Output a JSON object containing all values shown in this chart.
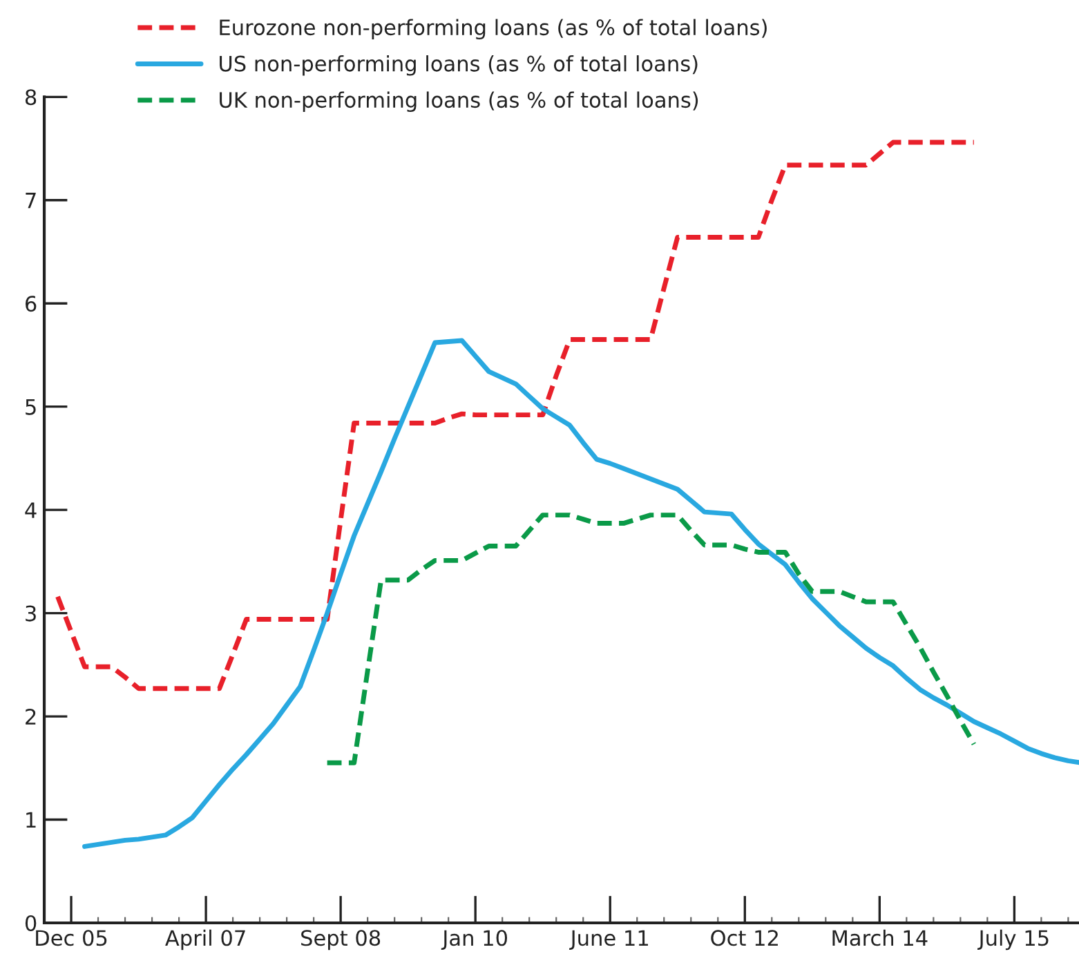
{
  "chart_data": {
    "type": "line",
    "categories": [
      null,
      "Dec 05",
      null,
      null,
      null,
      null,
      null,
      null,
      null,
      null,
      null,
      "April 07",
      null,
      null,
      null,
      null,
      null,
      null,
      null,
      null,
      null,
      "Sept 08",
      null,
      null,
      null,
      null,
      null,
      null,
      null,
      null,
      null,
      "Jan 10",
      null,
      null,
      null,
      null,
      null,
      null,
      null,
      null,
      null,
      "June 11",
      null,
      null,
      null,
      null,
      null,
      null,
      null,
      null,
      null,
      "Oct 12",
      null,
      null,
      null,
      null,
      null,
      null,
      null,
      null,
      null,
      "March 14",
      null,
      null,
      null,
      null,
      null,
      null,
      null,
      null,
      null,
      "July 15",
      null,
      null,
      null,
      null,
      null
    ],
    "ylim": [
      0,
      8
    ],
    "yticks": [
      0,
      1,
      2,
      3,
      4,
      5,
      6,
      7,
      8
    ],
    "grid": false,
    "legend": "top left",
    "series": [
      {
        "name": "Eurozone non-performing loans (as % of total loans)",
        "color": "#e8202a",
        "line_style": "dashed",
        "values": [
          3.16,
          2.82,
          2.48,
          2.48,
          2.48,
          2.38,
          2.27,
          2.27,
          2.27,
          2.27,
          2.27,
          2.27,
          2.27,
          2.6,
          2.94,
          2.94,
          2.94,
          2.94,
          2.94,
          2.94,
          2.94,
          3.9,
          4.84,
          4.84,
          4.84,
          4.84,
          4.84,
          4.84,
          4.84,
          4.89,
          4.93,
          4.92,
          4.92,
          4.92,
          4.92,
          4.92,
          4.92,
          5.3,
          5.65,
          5.65,
          5.65,
          5.65,
          5.65,
          5.65,
          5.65,
          6.15,
          6.64,
          6.64,
          6.64,
          6.64,
          6.64,
          6.64,
          6.64,
          7.0,
          7.34,
          7.34,
          7.34,
          7.34,
          7.34,
          7.34,
          7.34,
          7.45,
          7.56,
          7.56,
          7.56,
          7.56,
          7.56,
          7.56,
          7.56,
          null,
          null,
          null,
          null,
          null,
          null,
          null,
          null
        ]
      },
      {
        "name": "US non-performing loans (as % of total loans)",
        "color": "#29a8e0",
        "line_style": "solid",
        "values": [
          null,
          null,
          0.74,
          0.76,
          0.78,
          0.8,
          0.81,
          0.83,
          0.85,
          0.93,
          1.02,
          1.18,
          1.34,
          1.49,
          1.63,
          1.78,
          1.93,
          2.11,
          2.29,
          2.64,
          3.0,
          3.38,
          3.75,
          4.06,
          4.37,
          4.69,
          5.0,
          5.31,
          5.62,
          5.63,
          5.64,
          5.49,
          5.34,
          5.28,
          5.22,
          5.1,
          4.98,
          4.9,
          4.82,
          4.65,
          4.49,
          4.45,
          4.4,
          4.35,
          4.3,
          4.25,
          4.2,
          4.09,
          3.98,
          3.97,
          3.96,
          3.81,
          3.67,
          3.57,
          3.47,
          3.3,
          3.14,
          3.01,
          2.88,
          2.77,
          2.66,
          2.57,
          2.49,
          2.37,
          2.26,
          2.18,
          2.11,
          2.03,
          1.95,
          1.89,
          1.83,
          1.76,
          1.69,
          1.64,
          1.6,
          1.57,
          1.55
        ]
      },
      {
        "name": "UK non-performing loans (as % of total loans)",
        "color": "#0a9a48",
        "line_style": "dashed",
        "values": [
          null,
          null,
          null,
          null,
          null,
          null,
          null,
          null,
          null,
          null,
          null,
          null,
          null,
          null,
          null,
          null,
          null,
          null,
          null,
          null,
          1.55,
          1.55,
          1.55,
          2.44,
          3.32,
          3.32,
          3.32,
          3.42,
          3.51,
          3.51,
          3.51,
          3.58,
          3.65,
          3.65,
          3.65,
          3.8,
          3.95,
          3.95,
          3.95,
          3.91,
          3.87,
          3.87,
          3.87,
          3.91,
          3.95,
          3.95,
          3.95,
          3.8,
          3.66,
          3.66,
          3.66,
          3.62,
          3.59,
          3.59,
          3.59,
          3.38,
          3.21,
          3.21,
          3.21,
          3.16,
          3.11,
          3.11,
          3.11,
          2.89,
          2.67,
          2.43,
          2.2,
          1.96,
          1.73,
          null,
          null,
          null,
          null,
          null,
          null,
          null,
          null
        ]
      }
    ]
  }
}
